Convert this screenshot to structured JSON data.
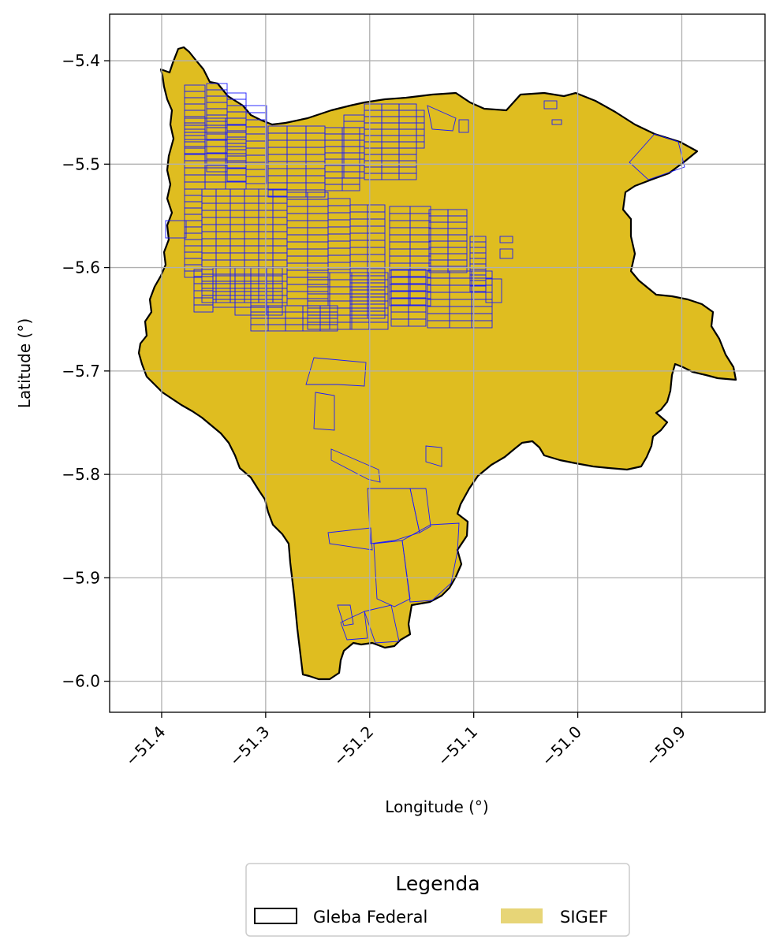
{
  "chart_data": {
    "type": "map",
    "xlabel": "Longitude (°)",
    "ylabel": "Latitude (°)",
    "xlim": [
      -51.45,
      -50.82
    ],
    "ylim": [
      -6.03,
      -5.355
    ],
    "xticks": [
      -51.4,
      -51.3,
      -51.2,
      -51.1,
      -51.0,
      -50.9
    ],
    "xtick_labels": [
      "−51.4",
      "−51.3",
      "−51.2",
      "−51.1",
      "−51.0",
      "−50.9"
    ],
    "yticks": [
      -5.4,
      -5.5,
      -5.6,
      -5.7,
      -5.8,
      -5.9,
      -6.0
    ],
    "ytick_labels": [
      "−5.4",
      "−5.5",
      "−5.6",
      "−5.7",
      "−5.8",
      "−5.9",
      "−6.0"
    ],
    "grid": true,
    "legend": {
      "title": "Legenda",
      "placement": "bottom-center",
      "entries": [
        {
          "label": "Gleba Federal",
          "style": "outline",
          "edge_color": "#000000"
        },
        {
          "label": "SIGEF",
          "style": "fill",
          "color": "#e7d577"
        }
      ]
    },
    "colors": {
      "gleba_fill": "#dfbd20",
      "gleba_edge": "#000000",
      "sigef_edge": "#1a1aff"
    }
  }
}
